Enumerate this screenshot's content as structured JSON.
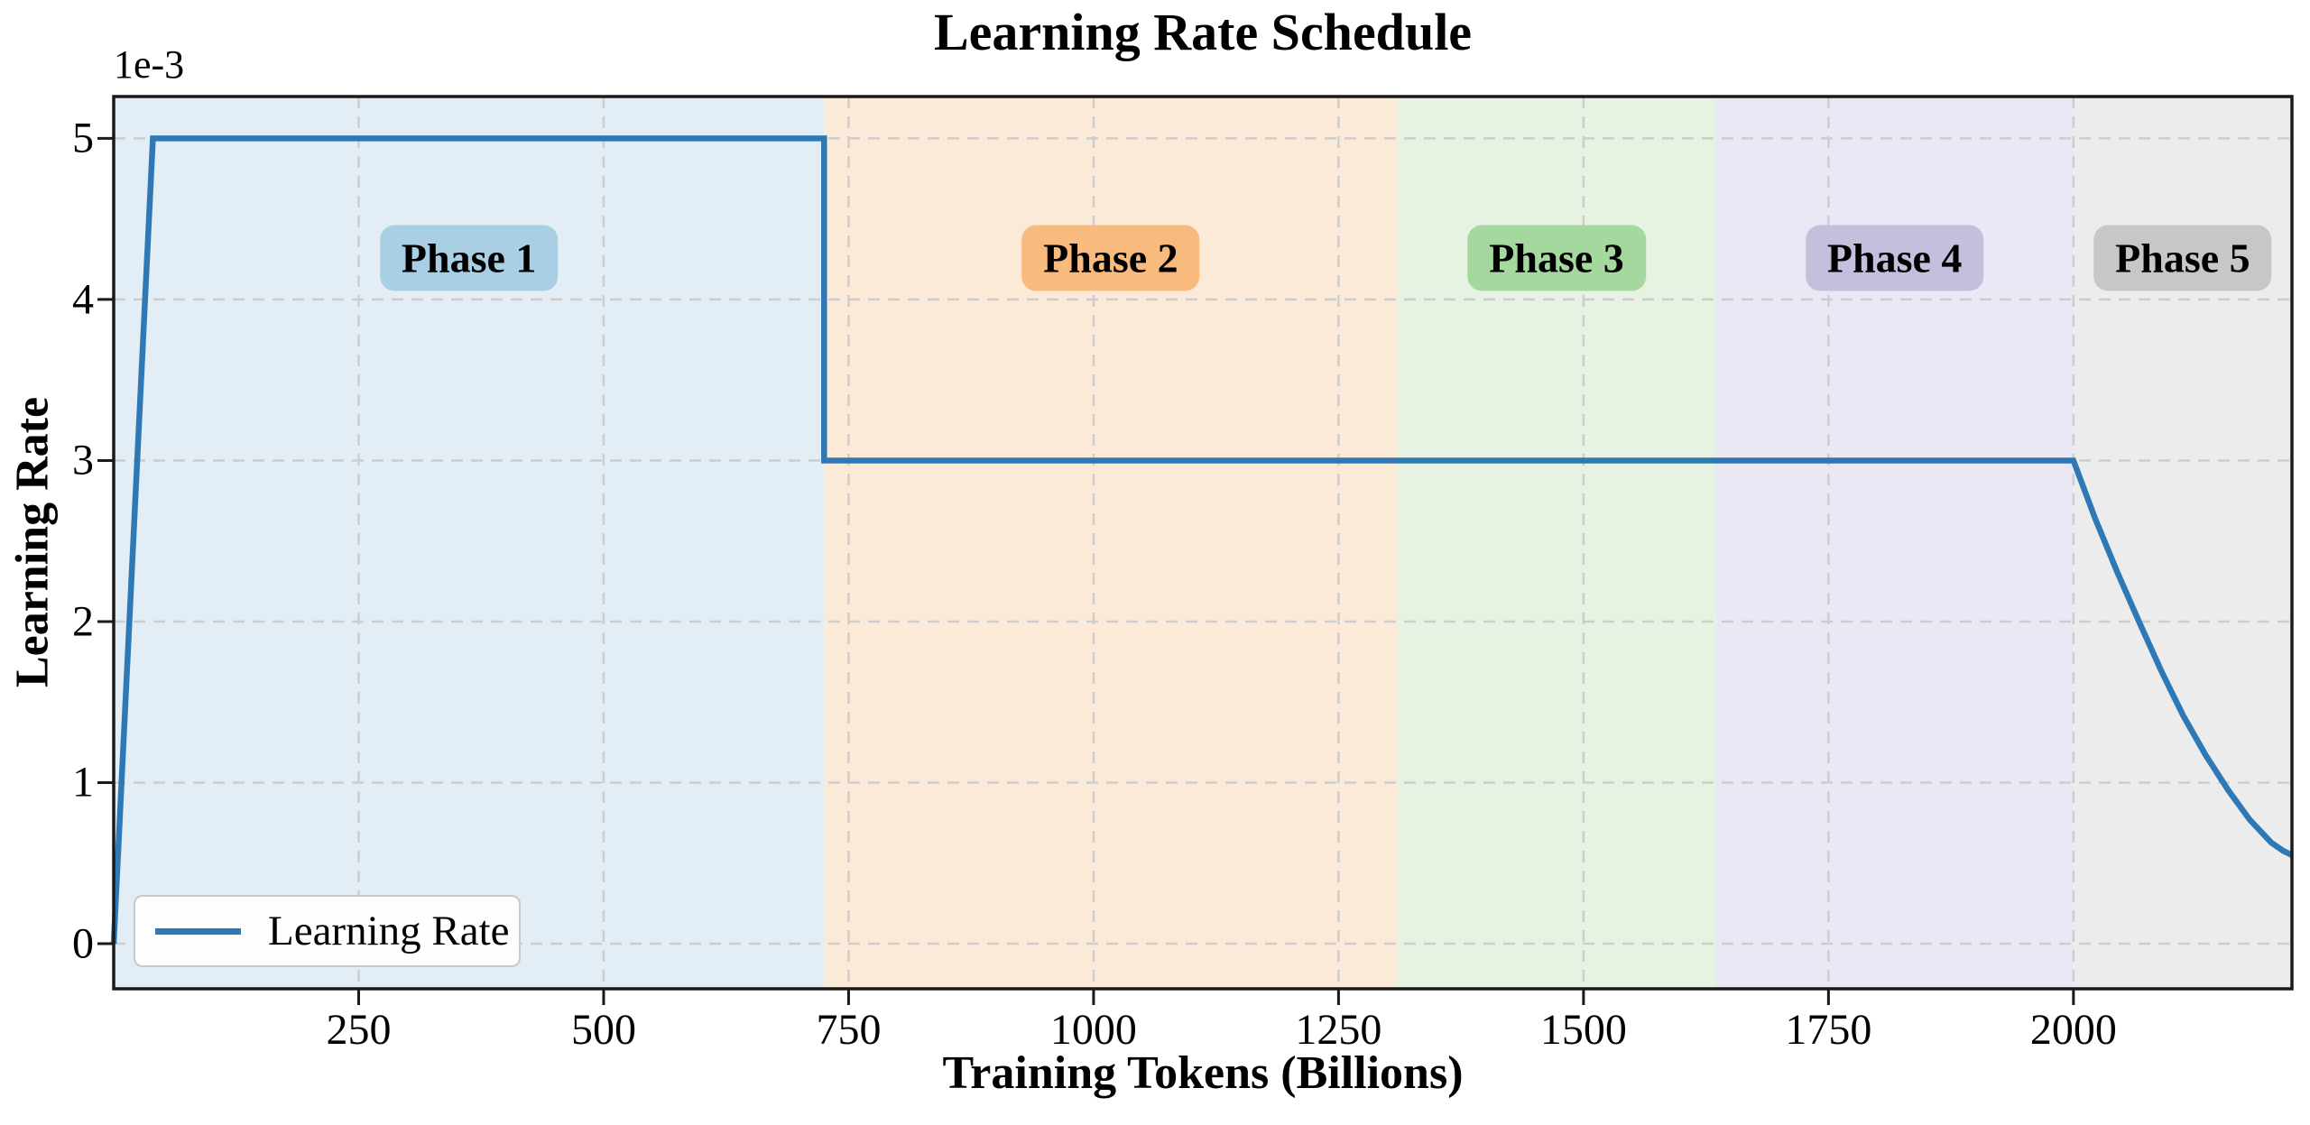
{
  "title": "Learning Rate Schedule",
  "x_axis": {
    "label": "Training Tokens (Billions)"
  },
  "y_axis": {
    "label": "Learning Rate",
    "offset_text": "1e-3"
  },
  "legend": {
    "position": "lower left",
    "entries": [
      {
        "label": "Learning Rate",
        "color": "#2e78b6"
      }
    ]
  },
  "colors": {
    "line": "#2e78b6",
    "grid": "#cdcdcd",
    "spine": "#1a1a1a",
    "figure_background": "#ffffff"
  },
  "chart_data": {
    "type": "line",
    "title": "Learning Rate Schedule",
    "xlabel": "Training Tokens (Billions)",
    "ylabel": "Learning Rate",
    "y_scale_factor": "1e-3",
    "xlim": [
      0,
      2223
    ],
    "ylim_1e3": [
      -0.28,
      5.26
    ],
    "x_ticks": [
      250,
      500,
      750,
      1000,
      1250,
      1500,
      1750,
      2000
    ],
    "y_ticks_1e3": [
      0,
      1,
      2,
      3,
      4,
      5
    ],
    "grid": true,
    "grid_style": "dashed",
    "legend_position": "lower left",
    "series": [
      {
        "name": "Learning Rate",
        "color": "#2e78b6",
        "points": [
          [
            0,
            0.0
          ],
          [
            40,
            0.005
          ],
          [
            725,
            0.005
          ],
          [
            725,
            0.003
          ],
          [
            2000,
            0.003
          ],
          [
            2022,
            0.002642
          ],
          [
            2045,
            0.002303
          ],
          [
            2068,
            0.001985
          ],
          [
            2090,
            0.001689
          ],
          [
            2112,
            0.001416
          ],
          [
            2135,
            0.00117
          ],
          [
            2158,
            0.000953
          ],
          [
            2180,
            0.000769
          ],
          [
            2202,
            0.000627
          ],
          [
            2214,
            0.000577
          ],
          [
            2223,
            0.00055
          ]
        ]
      }
    ],
    "schedule_summary": {
      "warmup_end_tokens": 40,
      "peak_lr": 0.005,
      "step_drop_tokens": 725,
      "mid_lr": 0.003,
      "decay_start_tokens": 2000,
      "final_lr": 0.00055
    },
    "phases": [
      {
        "label": "Phase 1",
        "start": 0,
        "end": 725,
        "band_color": "#e2edf6",
        "label_bg": "#a9cfe5"
      },
      {
        "label": "Phase 2",
        "start": 725,
        "end": 1310,
        "band_color": "#fcead9",
        "label_bg": "#f9ba7e"
      },
      {
        "label": "Phase 3",
        "start": 1310,
        "end": 1635,
        "band_color": "#e6f2e2",
        "label_bg": "#a5d89e"
      },
      {
        "label": "Phase 4",
        "start": 1635,
        "end": 2000,
        "band_color": "#e9e8f4",
        "label_bg": "#c3c0dd"
      },
      {
        "label": "Phase 5",
        "start": 2000,
        "end": 2223,
        "band_color": "#ececec",
        "label_bg": "#c7c7c7"
      }
    ],
    "phase_label_y_1e3": 4.26
  }
}
